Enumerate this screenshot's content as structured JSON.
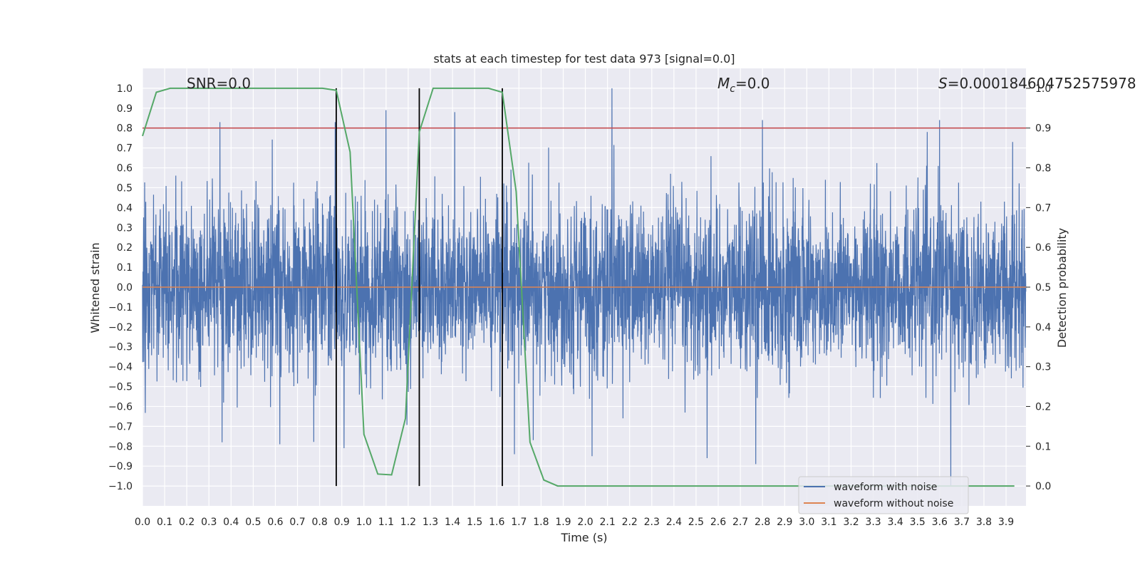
{
  "chart_data": {
    "type": "line",
    "title": "stats at each timestep for test data 973 [signal=0.0]",
    "xlabel": "Time (s)",
    "ylabel": "Whitened strain",
    "ylabel_right": "Detection probability",
    "xlim": [
      0.0,
      3.99
    ],
    "ylim": [
      -1.1,
      1.1
    ],
    "ylim_right": [
      -0.05,
      1.05
    ],
    "x_ticks": [
      0.0,
      0.1,
      0.2,
      0.3,
      0.4,
      0.5,
      0.6,
      0.7,
      0.8,
      0.9,
      1.0,
      1.1,
      1.2,
      1.3,
      1.4,
      1.5,
      1.6,
      1.7,
      1.8,
      1.9,
      2.0,
      2.1,
      2.2,
      2.3,
      2.4,
      2.5,
      2.6,
      2.7,
      2.8,
      2.9,
      3.0,
      3.1,
      3.2,
      3.3,
      3.4,
      3.5,
      3.6,
      3.7,
      3.8,
      3.9
    ],
    "x_tick_labels": [
      "0.0",
      "0.1",
      "0.2",
      "0.3",
      "0.4",
      "0.5",
      "0.6",
      "0.7",
      "0.8",
      "0.9",
      "1.0",
      "1.1",
      "1.2",
      "1.3",
      "1.4",
      "1.5",
      "1.6",
      "1.7",
      "1.8",
      "1.9",
      "2.0",
      "2.1",
      "2.2",
      "2.3",
      "2.4",
      "2.5",
      "2.6",
      "2.7",
      "2.8",
      "2.9",
      "3.0",
      "3.1",
      "3.2",
      "3.3",
      "3.4",
      "3.5",
      "3.6",
      "3.7",
      "3.8",
      "3.9"
    ],
    "y_ticks": [
      1.0,
      0.9,
      0.8,
      0.7,
      0.6,
      0.5,
      0.4,
      0.3,
      0.2,
      0.1,
      0.0,
      -0.1,
      -0.2,
      -0.3,
      -0.4,
      -0.5,
      -0.6,
      -0.7,
      -0.8,
      -0.9,
      -1.0
    ],
    "y_tick_labels": [
      "1.0",
      "0.9",
      "0.8",
      "0.7",
      "0.6",
      "0.5",
      "0.4",
      "0.3",
      "0.2",
      "0.1",
      "0.0",
      "−0.1",
      "−0.2",
      "−0.3",
      "−0.4",
      "−0.5",
      "−0.6",
      "−0.7",
      "−0.8",
      "−0.9",
      "−1.0"
    ],
    "y_right_ticks": [
      1.0,
      0.9,
      0.8,
      0.7,
      0.6,
      0.5,
      0.4,
      0.3,
      0.2,
      0.1,
      0.0
    ],
    "y_right_tick_labels": [
      "1.0",
      "0.9",
      "0.8",
      "0.7",
      "0.6",
      "0.5",
      "0.4",
      "0.3",
      "0.2",
      "0.1",
      "0.0"
    ],
    "grid": true,
    "annotations": [
      {
        "text": "SNR=0.0",
        "x": 0.2,
        "y": 1.0
      },
      {
        "text_parts": [
          "M",
          "c",
          "=0.0"
        ],
        "x": 2.6,
        "y": 1.0
      },
      {
        "text_parts": [
          "S",
          "",
          "=0.000184604752575978"
        ],
        "x": 3.6,
        "y": 1.0
      }
    ],
    "series": [
      {
        "name": "waveform with noise",
        "color": "#4c72b0",
        "axis": "left",
        "kind": "noise",
        "sample_rate": 1024,
        "amplitude_std": 0.21,
        "spike_peaks": [
          {
            "x": 0.35,
            "y": 0.83
          },
          {
            "x": 0.87,
            "y": 0.83
          },
          {
            "x": 0.91,
            "y": -0.81
          },
          {
            "x": 1.1,
            "y": 0.89
          },
          {
            "x": 1.41,
            "y": 0.88
          },
          {
            "x": 2.12,
            "y": 1.0
          },
          {
            "x": 2.77,
            "y": -0.89
          },
          {
            "x": 2.8,
            "y": 0.84
          },
          {
            "x": 3.6,
            "y": 0.84
          },
          {
            "x": 3.65,
            "y": -1.0
          },
          {
            "x": 3.93,
            "y": 0.73
          },
          {
            "x": 0.62,
            "y": -0.79
          },
          {
            "x": 2.55,
            "y": -0.86
          },
          {
            "x": 1.68,
            "y": -0.84
          },
          {
            "x": 2.03,
            "y": -0.85
          }
        ]
      },
      {
        "name": "waveform without noise",
        "color": "#dd8452",
        "axis": "left",
        "x": [
          0.0,
          3.99
        ],
        "y": [
          0.0,
          0.0
        ]
      },
      {
        "name": "",
        "color": "#55a868",
        "axis": "right",
        "x": [
          0.0,
          0.0625,
          0.125,
          0.1875,
          0.25,
          0.3125,
          0.375,
          0.4375,
          0.5,
          0.5625,
          0.625,
          0.6875,
          0.75,
          0.8125,
          0.875,
          0.9375,
          1.0,
          1.0625,
          1.125,
          1.1875,
          1.25,
          1.3125,
          1.375,
          1.4375,
          1.5,
          1.5625,
          1.625,
          1.6875,
          1.75,
          1.8125,
          1.875,
          1.9375,
          2.0,
          2.0625,
          2.125,
          2.1875,
          2.25,
          2.3125,
          2.375,
          2.4375,
          2.5,
          2.5625,
          2.625,
          2.6875,
          2.75,
          2.8125,
          2.875,
          2.9375,
          3.0,
          3.0625,
          3.125,
          3.1875,
          3.25,
          3.3125,
          3.375,
          3.4375,
          3.5,
          3.5625,
          3.625,
          3.6875,
          3.75,
          3.8125,
          3.875,
          3.9375
        ],
        "y": [
          0.88,
          0.99,
          1.0,
          1.0,
          1.0,
          1.0,
          1.0,
          1.0,
          1.0,
          1.0,
          1.0,
          1.0,
          1.0,
          1.0,
          0.995,
          0.84,
          0.13,
          0.03,
          0.028,
          0.17,
          0.89,
          1.0,
          1.0,
          1.0,
          1.0,
          1.0,
          0.99,
          0.74,
          0.11,
          0.015,
          0.0,
          0.0,
          0.0,
          0.0,
          0.0,
          0.0,
          0.0,
          0.0,
          0.0,
          0.0,
          0.0,
          0.0,
          0.0,
          0.0,
          0.0,
          0.0,
          0.0,
          0.0,
          0.0,
          0.0,
          0.0,
          0.0,
          0.0,
          0.0,
          0.0,
          0.0,
          0.0,
          0.0,
          0.0,
          0.0,
          0.0,
          0.0,
          0.0,
          0.0
        ]
      }
    ],
    "threshold": {
      "axis": "right",
      "value": 0.9,
      "color": "#c44e52"
    },
    "vertical_lines": [
      0.875,
      1.25,
      1.625
    ],
    "vertical_line_range": [
      0.0,
      1.0
    ],
    "legend": {
      "position": "lower-right",
      "entries": [
        {
          "label": "waveform with noise",
          "color": "#4c72b0"
        },
        {
          "label": "waveform without noise",
          "color": "#dd8452"
        }
      ]
    },
    "colors": {
      "plot_background": "#eaeaf2",
      "grid": "#ffffff",
      "text": "#262626",
      "vertical_line": "#000000"
    }
  }
}
